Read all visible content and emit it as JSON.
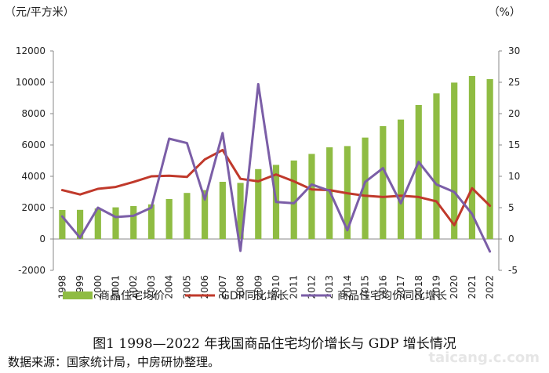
{
  "chart_data": {
    "type": "bar+line",
    "title": "图1   1998—2022 年我国商品住宅均价增长与 GDP 增长情况",
    "left_axis_unit": "（元/平方米）",
    "right_axis_unit": "（%）",
    "left_ylim": [
      -2000,
      12000
    ],
    "left_ticks": [
      -2000,
      0,
      2000,
      4000,
      6000,
      8000,
      10000,
      12000
    ],
    "right_ylim": [
      -5,
      30
    ],
    "right_ticks": [
      -5,
      0,
      5,
      10,
      15,
      20,
      25,
      30
    ],
    "categories": [
      "1998",
      "1999",
      "2000",
      "2001",
      "2002",
      "2003",
      "2004",
      "2005",
      "2006",
      "2007",
      "2008",
      "2009",
      "2010",
      "2011",
      "2012",
      "2013",
      "2014",
      "2015",
      "2016",
      "2017",
      "2018",
      "2019",
      "2020",
      "2021",
      "2022"
    ],
    "series": [
      {
        "name": "商品住宅均价",
        "type": "bar",
        "axis": "left",
        "color": "#8fbc43",
        "values": [
          1850,
          1860,
          1950,
          2020,
          2100,
          2210,
          2550,
          2940,
          3120,
          3650,
          3580,
          4460,
          4730,
          5010,
          5430,
          5850,
          5930,
          6470,
          7200,
          7620,
          8550,
          9290,
          9980,
          10400,
          10200
        ]
      },
      {
        "name": "GDP同比增长",
        "type": "line",
        "axis": "right",
        "color": "#c0392b",
        "values": [
          7.8,
          7.1,
          8.0,
          8.3,
          9.1,
          10.0,
          10.1,
          9.9,
          12.7,
          14.2,
          9.6,
          9.2,
          10.3,
          9.2,
          7.9,
          7.8,
          7.3,
          6.9,
          6.7,
          6.9,
          6.7,
          6.0,
          2.2,
          8.1,
          5.3
        ]
      },
      {
        "name": "商品住宅均价同比增长",
        "type": "line",
        "axis": "right",
        "color": "#7b5ea7",
        "values": [
          3.6,
          0.2,
          5.0,
          3.5,
          3.7,
          5.0,
          16.0,
          15.3,
          6.3,
          16.9,
          -1.9,
          24.7,
          5.9,
          5.7,
          8.7,
          7.7,
          1.4,
          9.1,
          11.3,
          5.7,
          12.3,
          8.7,
          7.5,
          4.0,
          -2.0
        ]
      }
    ],
    "legend_position": "bottom",
    "grid": false
  },
  "source_note": "数据来源：国家统计局，中房研协整理。",
  "watermark": "taicang.c.com"
}
